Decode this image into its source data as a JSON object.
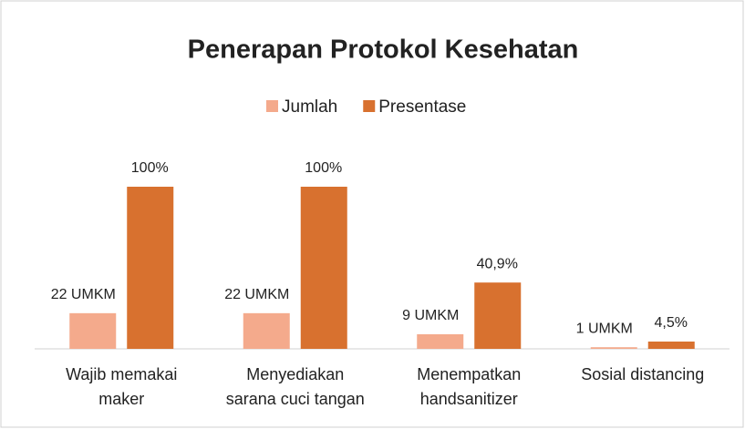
{
  "chart_data": {
    "type": "bar",
    "title": "Penerapan Protokol Kesehatan",
    "categories": [
      "Wajib memakai\nmaker",
      "Menyediakan\nsarana cuci tangan",
      "Menempatkan\nhandsanitizer",
      "Sosial distancing"
    ],
    "series": [
      {
        "name": "Jumlah",
        "color": "#f4aa8c",
        "values": [
          22,
          22,
          9,
          1
        ],
        "value_labels": [
          "22 UMKM",
          "22 UMKM",
          "9 UMKM",
          "1 UMKM"
        ]
      },
      {
        "name": "Presentase",
        "color": "#d8712f",
        "values": [
          100,
          100,
          40.9,
          4.5
        ],
        "value_labels": [
          "100%",
          "100%",
          "40,9%",
          "4,5%"
        ]
      }
    ],
    "legend": "top"
  }
}
